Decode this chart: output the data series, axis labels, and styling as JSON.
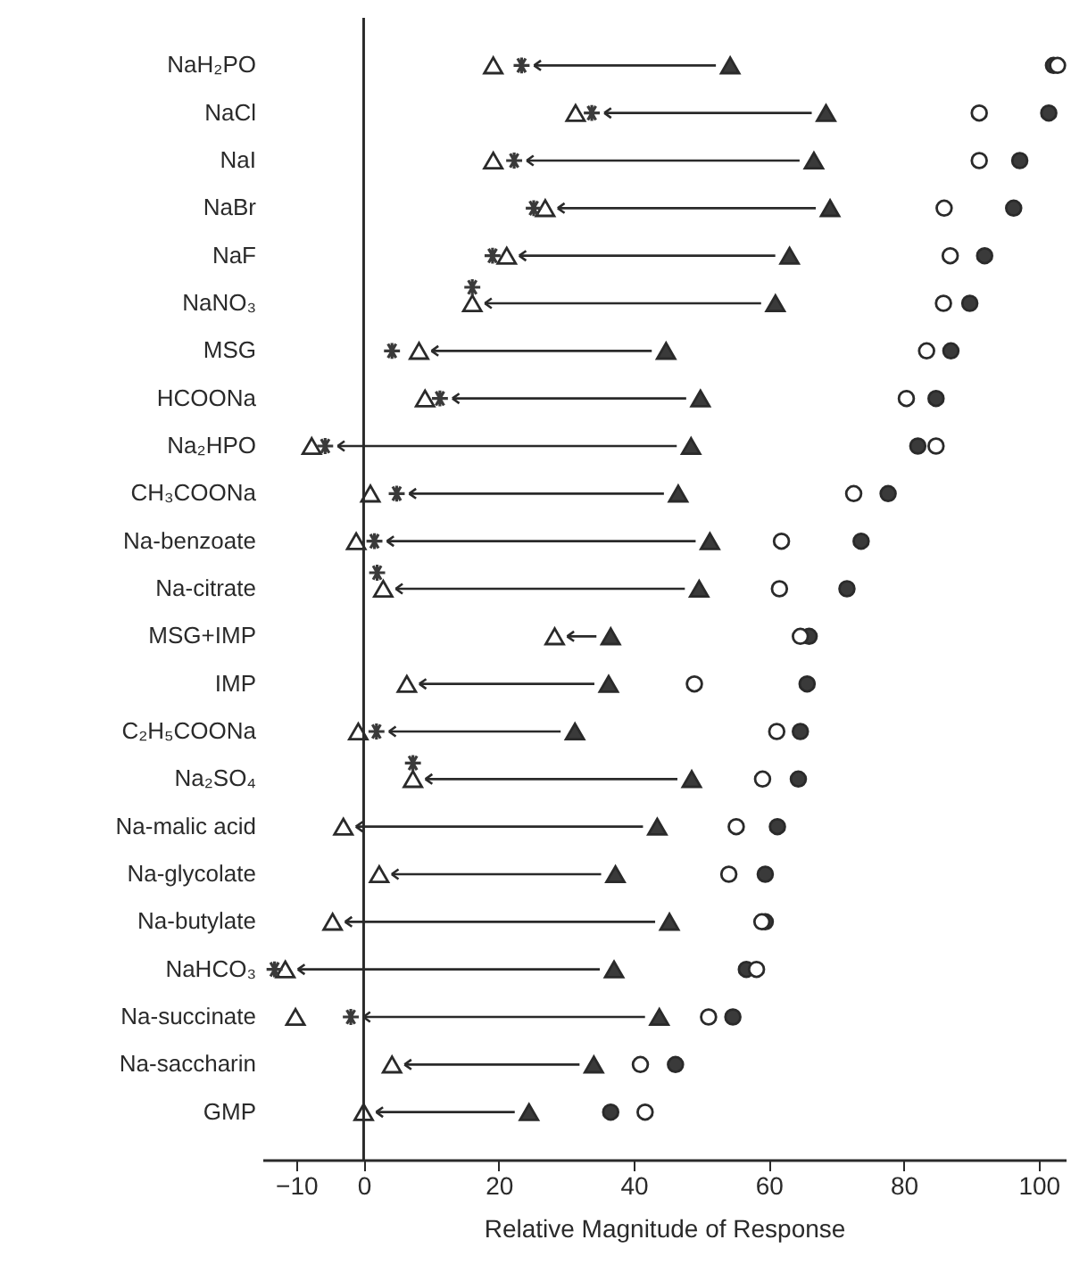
{
  "chart_data": {
    "type": "scatter",
    "orientation": "horizontal",
    "xlabel": "Relative Magnitude of Response",
    "categories": [
      "NaH₂PO",
      "NaCl",
      "NaI",
      "NaBr",
      "NaF",
      "NaNO₃",
      "MSG",
      "HCOONa",
      "Na₂HPO",
      "CH₃COONa",
      "Na-benzoate",
      "Na-citrate",
      "MSG+IMP",
      "IMP",
      "C₂H₅COONa",
      "Na₂SO₄",
      "Na-malic acid",
      "Na-glycolate",
      "Na-butylate",
      "NaHCO₃",
      "Na-succinate",
      "Na-saccharin",
      "GMP"
    ],
    "series": [
      {
        "marker": "triangle",
        "color": "#3a3a3a",
        "values": [
          54.3,
          68.5,
          66.7,
          69.1,
          63.1,
          61.0,
          44.8,
          49.9,
          48.5,
          46.6,
          51.3,
          49.7,
          36.6,
          36.3,
          31.3,
          48.6,
          43.5,
          37.3,
          45.3,
          37.1,
          43.8,
          34.1,
          24.5
        ]
      },
      {
        "marker": "triangle",
        "color": "#ffffff",
        "values": [
          19.2,
          31.4,
          19.2,
          26.9,
          21.2,
          16.1,
          8.2,
          9.1,
          -7.7,
          1.0,
          -1.1,
          2.9,
          28.3,
          6.4,
          -0.8,
          7.3,
          -3.0,
          2.3,
          -4.6,
          -11.6,
          -10.1,
          4.2,
          0.0
        ]
      },
      {
        "marker": "cross",
        "color": "#3a3a3a",
        "values": [
          23.4,
          33.8,
          22.3,
          25.2,
          19.1,
          16.1,
          4.2,
          11.3,
          -5.7,
          4.9,
          1.6,
          2.0,
          null,
          null,
          1.9,
          7.3,
          null,
          null,
          null,
          -13.2,
          -1.9,
          null,
          null
        ]
      },
      {
        "marker": "circle",
        "color": "#3a3a3a",
        "values": [
          102.2,
          101.5,
          97.2,
          96.3,
          92.0,
          89.8,
          87.0,
          84.8,
          82.1,
          77.7,
          73.7,
          71.6,
          66.0,
          65.7,
          64.7,
          64.4,
          61.3,
          59.5,
          59.5,
          56.7,
          54.7,
          46.2,
          36.6
        ]
      },
      {
        "marker": "circle",
        "color": "#ffffff",
        "values": [
          102.8,
          91.2,
          91.2,
          86.0,
          86.9,
          85.9,
          83.4,
          80.4,
          84.8,
          72.6,
          61.9,
          61.6,
          64.7,
          49.0,
          61.2,
          59.1,
          55.2,
          54.1,
          59.0,
          58.2,
          51.1,
          41.0,
          41.7
        ]
      }
    ],
    "xlim": [
      -15,
      104
    ],
    "xticks": [
      -10,
      0,
      20,
      40,
      60,
      80,
      100
    ],
    "ref_lines": [
      {
        "axis": "x",
        "value": 0
      }
    ],
    "grid": false
  }
}
